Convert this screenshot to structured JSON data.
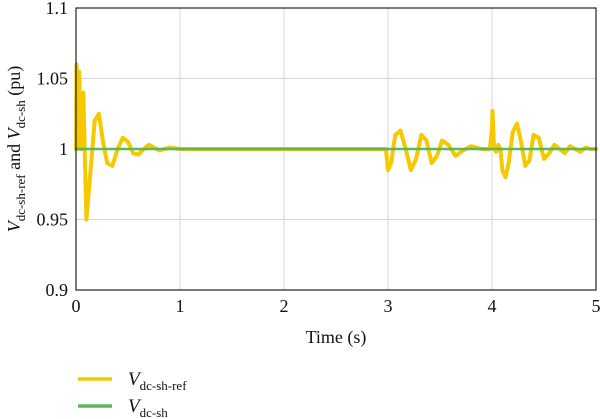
{
  "chart_data": {
    "type": "line",
    "xlabel": "Time (s)",
    "ylabel": {
      "pre": "V",
      "sub1": "dc-sh-ref",
      "mid": " and ",
      "pre2": "V",
      "sub2": "dc-sh",
      "post": " (pu)"
    },
    "xlim": [
      0,
      5
    ],
    "ylim": [
      0.9,
      1.1
    ],
    "xticks": [
      "0",
      "1",
      "2",
      "3",
      "4",
      "5"
    ],
    "yticks": [
      "0.9",
      "0.95",
      "1",
      "1.05",
      "1.1"
    ],
    "grid": true,
    "legend_position": "bottom-left",
    "series": [
      {
        "name": "V dc-sh-ref",
        "legend": {
          "main": "V",
          "sub": "dc-sh-ref"
        },
        "color": "#F5C800",
        "x": [
          0,
          0.005,
          0.015,
          0.03,
          0.05,
          0.07,
          0.1,
          0.14,
          0.18,
          0.22,
          0.26,
          0.3,
          0.35,
          0.4,
          0.45,
          0.5,
          0.55,
          0.6,
          0.65,
          0.7,
          0.75,
          0.8,
          0.9,
          1.0,
          1.2,
          1.5,
          2.0,
          2.5,
          2.98,
          3.0,
          3.03,
          3.07,
          3.12,
          3.17,
          3.22,
          3.27,
          3.32,
          3.37,
          3.42,
          3.47,
          3.52,
          3.58,
          3.65,
          3.72,
          3.8,
          3.9,
          3.98,
          4.0,
          4.005,
          4.02,
          4.04,
          4.06,
          4.08,
          4.1,
          4.13,
          4.16,
          4.2,
          4.24,
          4.28,
          4.32,
          4.36,
          4.4,
          4.45,
          4.5,
          4.55,
          4.6,
          4.65,
          4.7,
          4.75,
          4.8,
          4.85,
          4.9,
          4.95,
          5.0
        ],
        "y": [
          1.0,
          1.06,
          1.0,
          1.055,
          1.0,
          1.04,
          0.95,
          0.985,
          1.02,
          1.025,
          1.005,
          0.99,
          0.988,
          1.0,
          1.008,
          1.005,
          0.997,
          0.996,
          1.0,
          1.003,
          1.001,
          0.999,
          1.001,
          1.0,
          1.0,
          1.0,
          1.0,
          1.0,
          1.0,
          0.985,
          0.99,
          1.01,
          1.013,
          1.0,
          0.985,
          0.993,
          1.01,
          1.006,
          0.99,
          0.995,
          1.006,
          1.003,
          0.995,
          0.999,
          1.002,
          1.0,
          1.0,
          1.015,
          1.027,
          1.0,
          0.998,
          1.003,
          1.0,
          0.985,
          0.98,
          0.99,
          1.012,
          1.018,
          1.005,
          0.988,
          0.992,
          1.01,
          1.008,
          0.993,
          0.997,
          1.003,
          1.0,
          0.997,
          1.002,
          1.0,
          0.998,
          1.001,
          1.0,
          1.0
        ]
      },
      {
        "name": "V dc-sh",
        "legend": {
          "main": "V",
          "sub": "dc-sh"
        },
        "color": "#5CB85C",
        "x": [
          0,
          5
        ],
        "y": [
          1.0,
          1.0
        ]
      }
    ]
  }
}
